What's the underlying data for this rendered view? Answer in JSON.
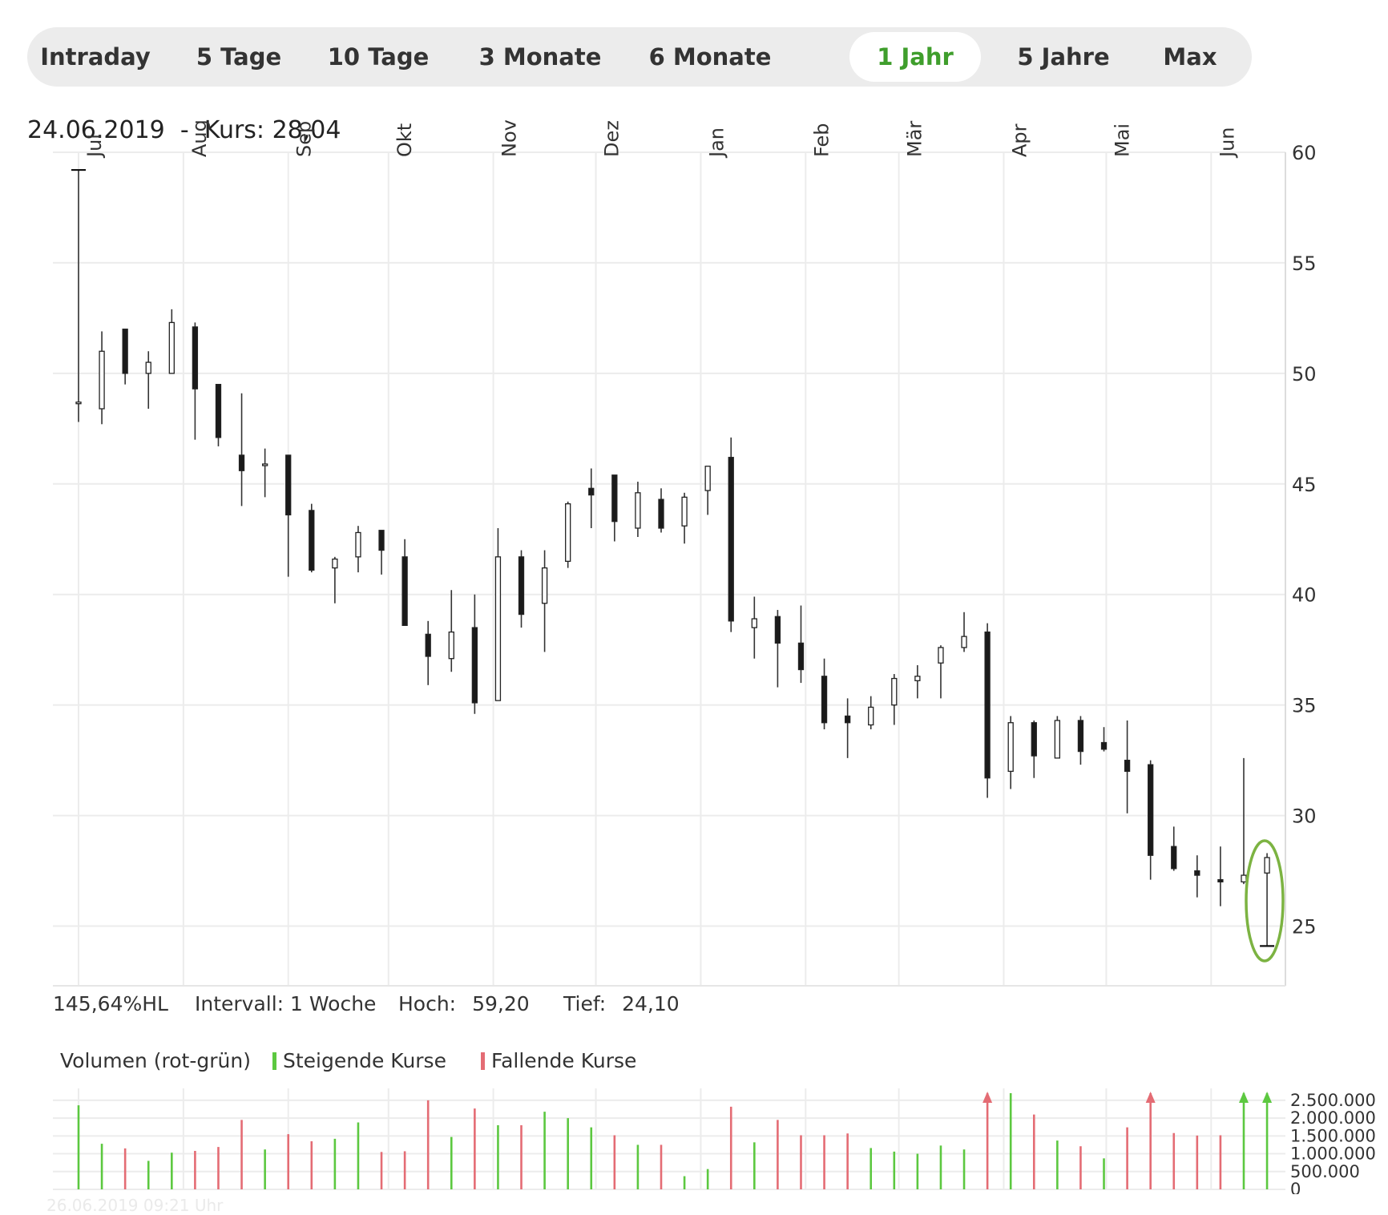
{
  "tabs": {
    "items": [
      "Intraday",
      "5 Tage",
      "10 Tage",
      "3 Monate",
      "6 Monate",
      "1 Jahr",
      "5 Jahre",
      "Max"
    ],
    "active": "1 Jahr"
  },
  "header": {
    "date": "24.06.2019",
    "sep": "-",
    "kurs_label": "Kurs:",
    "kurs_value": "28,04"
  },
  "stats": {
    "hl": "145,64%HL",
    "interval": "Intervall: 1 Woche",
    "hoch_label": "Hoch:",
    "hoch_value": "59,20",
    "tief_label": "Tief:",
    "tief_value": "24,10"
  },
  "volume_legend": {
    "title": "Volumen (rot-grün)",
    "up": "Steigende Kurse",
    "down": "Fallende Kurse"
  },
  "colors": {
    "up": "#5cc840",
    "down": "#e46c74",
    "highlight": "#7cb342",
    "active_tab": "#3f9e2c"
  },
  "footer": {
    "timestamp": "26.06.2019 09:21 Uhr"
  },
  "chart_data": [
    {
      "type": "candlestick",
      "title": "1 Jahr",
      "interval": "1 Woche",
      "month_labels": [
        "Jul",
        "Aug",
        "Sep",
        "Okt",
        "Nov",
        "Dez",
        "Jan",
        "Feb",
        "Mär",
        "Apr",
        "Mai",
        "Jun"
      ],
      "month_start_index": [
        0,
        4.5,
        9,
        13.3,
        17.8,
        22.2,
        26.7,
        31.2,
        35.2,
        39.7,
        44.1,
        48.6
      ],
      "y_ticks": [
        25,
        30,
        35,
        40,
        45,
        50,
        55,
        60
      ],
      "ylim": [
        22.3,
        60
      ],
      "grid": true,
      "ohlc": [
        [
          48.7,
          59.2,
          47.8,
          48.7
        ],
        [
          48.4,
          51.9,
          47.7,
          51.0
        ],
        [
          52.0,
          52.0,
          49.5,
          50.0
        ],
        [
          50.0,
          51.0,
          48.4,
          50.5
        ],
        [
          50.0,
          52.9,
          50.0,
          52.3
        ],
        [
          52.1,
          52.3,
          47.0,
          49.3
        ],
        [
          49.5,
          49.5,
          46.7,
          47.1
        ],
        [
          46.3,
          49.1,
          44.0,
          45.6
        ],
        [
          45.9,
          46.6,
          44.4,
          45.9
        ],
        [
          46.3,
          46.3,
          40.8,
          43.6
        ],
        [
          43.8,
          44.1,
          41.0,
          41.1
        ],
        [
          41.2,
          41.7,
          39.6,
          41.6
        ],
        [
          41.7,
          43.1,
          41.0,
          42.8
        ],
        [
          42.9,
          42.9,
          40.9,
          42.0
        ],
        [
          41.7,
          42.5,
          38.6,
          38.6
        ],
        [
          38.2,
          38.8,
          35.9,
          37.2
        ],
        [
          37.1,
          40.2,
          36.5,
          38.3
        ],
        [
          38.5,
          40.0,
          34.6,
          35.1
        ],
        [
          35.2,
          43.0,
          35.2,
          41.7
        ],
        [
          41.7,
          42.0,
          38.5,
          39.1
        ],
        [
          39.6,
          42.0,
          37.4,
          41.2
        ],
        [
          41.5,
          44.2,
          41.2,
          44.1
        ],
        [
          44.8,
          45.7,
          43.0,
          44.5
        ],
        [
          45.4,
          45.4,
          42.4,
          43.3
        ],
        [
          43.0,
          45.1,
          42.6,
          44.6
        ],
        [
          44.3,
          44.8,
          42.8,
          43.0
        ],
        [
          43.1,
          44.6,
          42.3,
          44.4
        ],
        [
          44.7,
          45.8,
          43.6,
          45.8
        ],
        [
          46.2,
          47.1,
          38.3,
          38.8
        ],
        [
          38.5,
          39.9,
          37.1,
          38.9
        ],
        [
          39.0,
          39.3,
          35.8,
          37.8
        ],
        [
          37.8,
          39.5,
          36.0,
          36.6
        ],
        [
          36.3,
          37.1,
          33.9,
          34.2
        ],
        [
          34.5,
          35.3,
          32.6,
          34.2
        ],
        [
          34.1,
          35.4,
          33.9,
          34.9
        ],
        [
          35.0,
          36.4,
          34.1,
          36.2
        ],
        [
          36.1,
          36.8,
          35.3,
          36.3
        ],
        [
          36.9,
          37.7,
          35.3,
          37.6
        ],
        [
          37.6,
          39.2,
          37.4,
          38.1
        ],
        [
          38.3,
          38.7,
          30.8,
          31.7
        ],
        [
          32.0,
          34.5,
          31.2,
          34.2
        ],
        [
          34.2,
          34.3,
          31.7,
          32.7
        ],
        [
          32.6,
          34.5,
          32.6,
          34.3
        ],
        [
          34.3,
          34.5,
          32.3,
          32.9
        ],
        [
          33.3,
          34.0,
          32.9,
          33.0
        ],
        [
          32.5,
          34.3,
          30.1,
          32.0
        ],
        [
          32.3,
          32.5,
          27.1,
          28.2
        ],
        [
          28.6,
          29.5,
          27.5,
          27.6
        ],
        [
          27.5,
          28.2,
          26.3,
          27.3
        ],
        [
          27.1,
          28.6,
          25.9,
          27.0
        ],
        [
          27.0,
          32.6,
          26.9,
          27.3
        ],
        [
          27.4,
          28.3,
          24.1,
          28.1
        ]
      ]
    },
    {
      "type": "bar",
      "title": "Volumen (rot-grün)",
      "y_ticks": [
        "2.500.000",
        "2.000.000",
        "1.500.000",
        "1.000.000",
        "500.000",
        "0"
      ],
      "ylim": [
        0,
        2700000
      ],
      "values": [
        2360000,
        1280000,
        1150000,
        800000,
        1030000,
        1080000,
        1190000,
        1950000,
        1120000,
        1550000,
        1350000,
        1420000,
        1880000,
        1050000,
        1070000,
        2500000,
        1470000,
        2270000,
        1800000,
        1800000,
        2180000,
        2000000,
        1740000,
        1520000,
        1250000,
        1250000,
        370000,
        570000,
        2320000,
        1320000,
        1950000,
        1520000,
        1520000,
        1570000,
        1160000,
        1060000,
        1000000,
        1230000,
        1120000,
        2700000,
        2700000,
        2100000,
        1370000,
        1210000,
        870000,
        1740000,
        2700000,
        1580000,
        1510000,
        1520000,
        2700000,
        2700000
      ],
      "direction": [
        "up",
        "up",
        "down",
        "up",
        "up",
        "down",
        "down",
        "down",
        "up",
        "down",
        "down",
        "up",
        "up",
        "down",
        "down",
        "down",
        "up",
        "down",
        "up",
        "down",
        "up",
        "up",
        "up",
        "down",
        "up",
        "down",
        "up",
        "up",
        "down",
        "up",
        "down",
        "down",
        "down",
        "down",
        "up",
        "up",
        "up",
        "up",
        "up",
        "down",
        "up",
        "down",
        "up",
        "down",
        "up",
        "down",
        "down",
        "down",
        "down",
        "down",
        "up",
        "up"
      ],
      "clipped": [
        39,
        46,
        50,
        51
      ]
    }
  ]
}
